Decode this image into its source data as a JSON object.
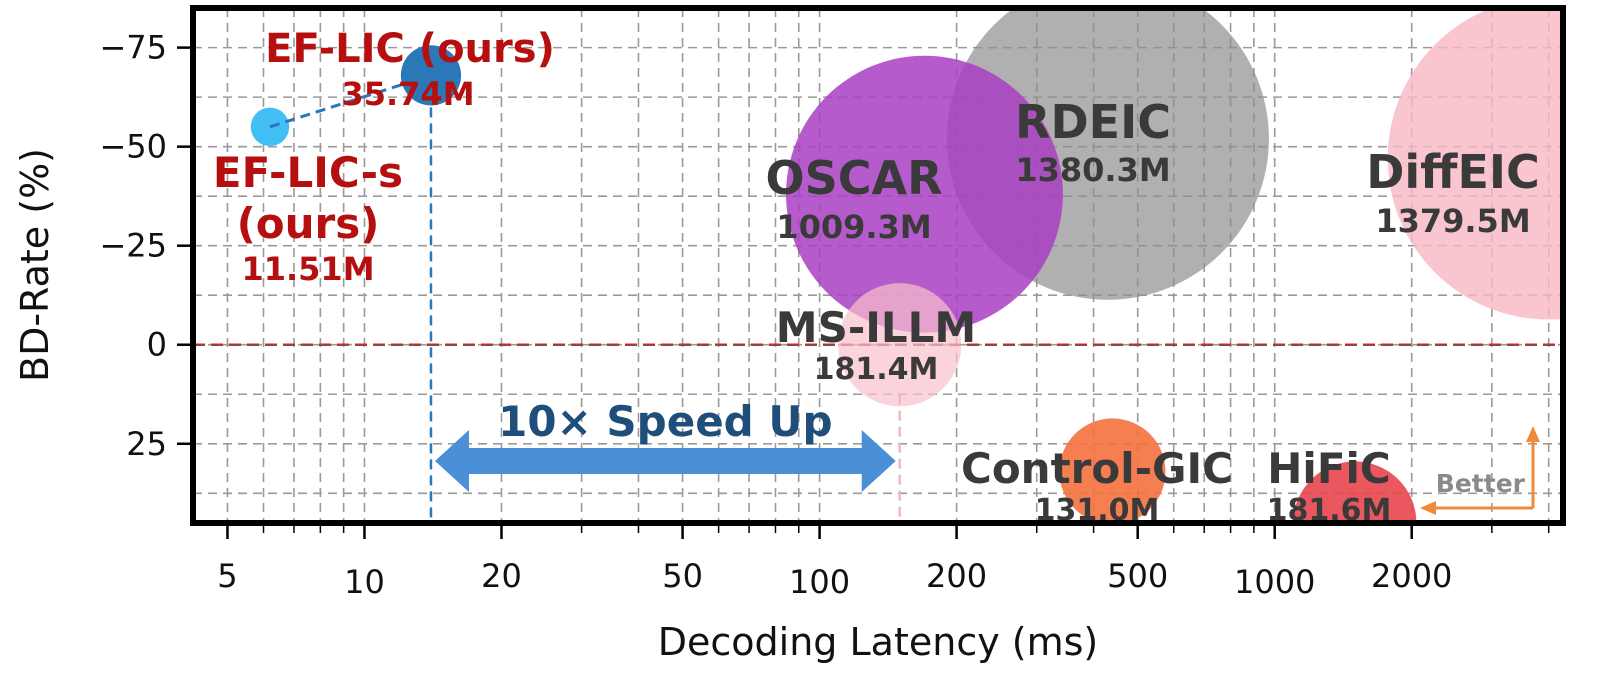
{
  "chart_data": {
    "type": "scatter",
    "variant": "bubble",
    "xlabel": "Decoding Latency (ms)",
    "ylabel": "BD-Rate (%)",
    "x_scale": "log",
    "xlim": [
      4.2,
      4300
    ],
    "ylim": [
      45,
      -85
    ],
    "y_inverted": true,
    "grid": true,
    "x_ticks": [
      {
        "value": 5,
        "label": "5"
      },
      {
        "value": 10,
        "label": "10"
      },
      {
        "value": 20,
        "label": "20"
      },
      {
        "value": 50,
        "label": "50"
      },
      {
        "value": 100,
        "label": "100"
      },
      {
        "value": 200,
        "label": "200"
      },
      {
        "value": 500,
        "label": "500"
      },
      {
        "value": 1000,
        "label": "1000"
      },
      {
        "value": 2000,
        "label": "2000"
      }
    ],
    "y_ticks": [
      {
        "value": -75,
        "label": "−75"
      },
      {
        "value": -50,
        "label": "−50"
      },
      {
        "value": -25,
        "label": "−25"
      },
      {
        "value": 0,
        "label": "0"
      },
      {
        "value": 25,
        "label": "25"
      }
    ],
    "zero_line": 0,
    "points": [
      {
        "name": "EF-LIC (ours)",
        "params": "35.74M",
        "params_m": 35.74,
        "x": 14,
        "y": -68,
        "color": "#2b78b8",
        "text_color": "#b50f0f"
      },
      {
        "name": "EF-LIC-s (ours)",
        "name_lines": [
          "EF-LIC-s",
          "(ours)"
        ],
        "params": "11.51M",
        "params_m": 11.51,
        "x": 6.2,
        "y": -55,
        "color": "#42bff5",
        "text_color": "#b50f0f"
      },
      {
        "name": "OSCAR",
        "params": "1009.3M",
        "params_m": 1009.3,
        "x": 170,
        "y": -38,
        "color": "#a93ec2",
        "opacity": 0.85,
        "text_color": "#3a3a3a"
      },
      {
        "name": "RDEIC",
        "params": "1380.3M",
        "params_m": 1380.3,
        "x": 430,
        "y": -52,
        "color": "#8f8f8f",
        "opacity": 0.7,
        "text_color": "#3a3a3a"
      },
      {
        "name": "DiffEIC",
        "params": "1379.5M",
        "params_m": 1379.5,
        "x": 4000,
        "y": -47,
        "color": "#f8b7c3",
        "opacity": 0.8,
        "text_color": "#3a3a3a"
      },
      {
        "name": "MS-ILLM",
        "params": "181.4M",
        "params_m": 181.4,
        "x": 150,
        "y": 0,
        "color": "#f8c0cc",
        "opacity": 0.7,
        "text_color": "#3a3a3a"
      },
      {
        "name": "Control-GIC",
        "params": "131.0M",
        "params_m": 131.0,
        "x": 440,
        "y": 32,
        "color": "#f5713f",
        "opacity": 0.9,
        "text_color": "#3a3a3a"
      },
      {
        "name": "HiFiC",
        "params": "181.6M",
        "params_m": 181.6,
        "x": 1500,
        "y": 45,
        "color": "#e8454d",
        "opacity": 0.9,
        "text_color": "#3a3a3a"
      }
    ],
    "annotations": {
      "speedup_label": "10× Speed Up",
      "speedup_from_x": 14,
      "speedup_to_x": 150,
      "speedup_color": "#4a90d6",
      "speedup_text_color": "#1f4e7a",
      "better_label": "Better",
      "better_color": "#ee8a3a"
    }
  }
}
